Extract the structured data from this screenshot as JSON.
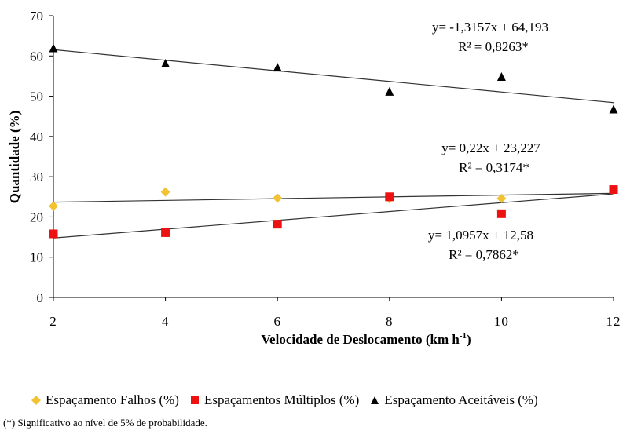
{
  "chart_data": {
    "type": "scatter",
    "xlabel": "Velocidade de Deslocamento (km h",
    "xlabel_sup": "-1",
    "xlabel_end": ")",
    "ylabel": "Quantidade (%)",
    "x_ticks": [
      "2",
      "4",
      "6",
      "8",
      "10",
      "12"
    ],
    "y_ticks": [
      "0",
      "10",
      "20",
      "30",
      "40",
      "50",
      "60",
      "70"
    ],
    "xlim": [
      2,
      12
    ],
    "ylim": [
      0,
      70
    ],
    "grid": false,
    "legend_position": "bottom",
    "series": [
      {
        "name": "Espaçamento Falhos (%)",
        "marker": "diamond",
        "color": "#F2C232",
        "x": [
          2,
          4,
          6,
          8,
          10,
          12
        ],
        "y": [
          22.7,
          26.2,
          24.7,
          24.5,
          24.6,
          26.7
        ],
        "trend": {
          "slope": 0.22,
          "intercept": 23.227,
          "equation": "y= 0,22x + 23,227",
          "r2": "R² = 0,3174*"
        }
      },
      {
        "name": "Espaçamentos Múltiplos (%)",
        "marker": "square",
        "color": "#EE1111",
        "x": [
          2,
          4,
          6,
          8,
          10,
          12
        ],
        "y": [
          15.8,
          16.1,
          18.2,
          25.0,
          20.8,
          26.8
        ],
        "trend": {
          "slope": 1.0957,
          "intercept": 12.58,
          "equation": "y= 1,0957x + 12,58",
          "r2": "R² = 0,7862*"
        }
      },
      {
        "name": "Espaçamento Aceitáveis (%)",
        "marker": "triangle",
        "color": "#000000",
        "x": [
          2,
          4,
          6,
          8,
          10,
          12
        ],
        "y": [
          61.9,
          58.1,
          57.1,
          51.1,
          54.8,
          46.7
        ],
        "trend": {
          "slope": -1.3157,
          "intercept": 64.193,
          "equation": "y= -1,3157x + 64,193",
          "r2": "R² = 0,8263*"
        }
      }
    ]
  },
  "footnote": "(*) Significativo ao nível de 5% de probabilidade."
}
